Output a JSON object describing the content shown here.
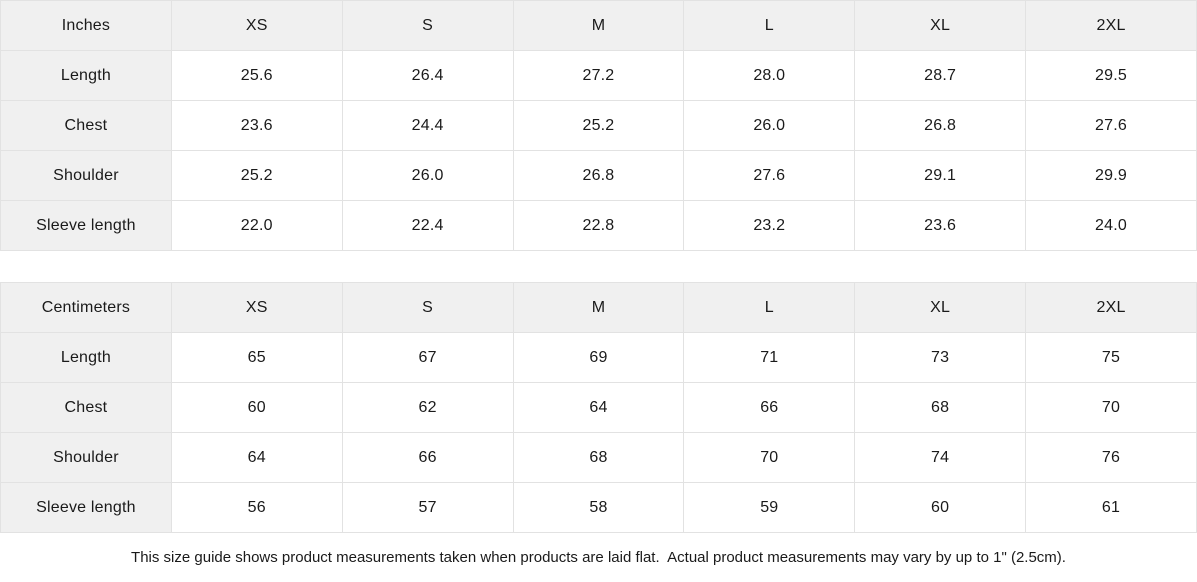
{
  "colors": {
    "header_bg": "#f0f0f0",
    "row_label_bg": "#f0f0f0",
    "cell_bg": "#ffffff",
    "border": "#e2e2e2",
    "text": "#1a1a1a"
  },
  "inches_table": {
    "unit_label": "Inches",
    "columns": [
      "XS",
      "S",
      "M",
      "L",
      "XL",
      "2XL"
    ],
    "rows": [
      {
        "label": "Length",
        "values": [
          "25.6",
          "26.4",
          "27.2",
          "28.0",
          "28.7",
          "29.5"
        ]
      },
      {
        "label": "Chest",
        "values": [
          "23.6",
          "24.4",
          "25.2",
          "26.0",
          "26.8",
          "27.6"
        ]
      },
      {
        "label": "Shoulder",
        "values": [
          "25.2",
          "26.0",
          "26.8",
          "27.6",
          "29.1",
          "29.9"
        ]
      },
      {
        "label": "Sleeve length",
        "values": [
          "22.0",
          "22.4",
          "22.8",
          "23.2",
          "23.6",
          "24.0"
        ]
      }
    ]
  },
  "centimeters_table": {
    "unit_label": "Centimeters",
    "columns": [
      "XS",
      "S",
      "M",
      "L",
      "XL",
      "2XL"
    ],
    "rows": [
      {
        "label": "Length",
        "values": [
          "65",
          "67",
          "69",
          "71",
          "73",
          "75"
        ]
      },
      {
        "label": "Chest",
        "values": [
          "60",
          "62",
          "64",
          "66",
          "68",
          "70"
        ]
      },
      {
        "label": "Shoulder",
        "values": [
          "64",
          "66",
          "68",
          "70",
          "74",
          "76"
        ]
      },
      {
        "label": "Sleeve length",
        "values": [
          "56",
          "57",
          "58",
          "59",
          "60",
          "61"
        ]
      }
    ]
  },
  "footer": {
    "note": "This size guide shows product measurements taken when products are laid flat.  Actual product measurements may vary by up to 1\" (2.5cm)."
  }
}
